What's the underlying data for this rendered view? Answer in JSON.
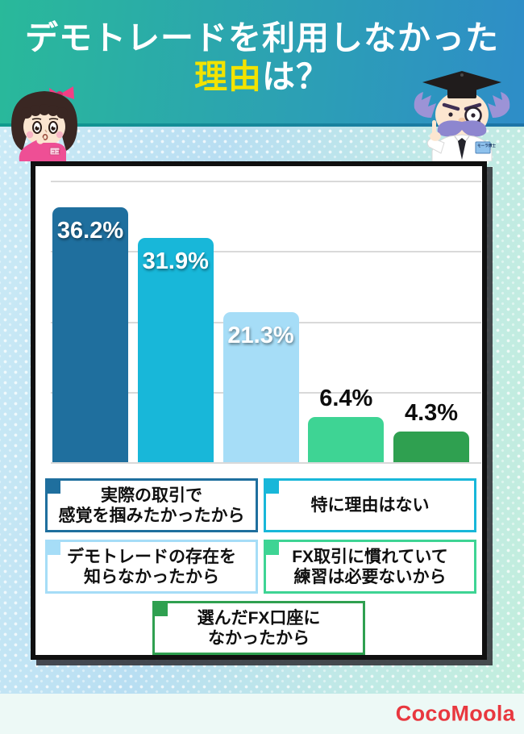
{
  "header": {
    "title_line1": "デモトレードを利用しなかった",
    "title_line2_highlight": "理由",
    "title_line2_rest": "は？",
    "highlight_color": "#f2e300",
    "gradient_left": "#29b99a",
    "gradient_right": "#2e8dc8"
  },
  "chart_data": {
    "type": "bar",
    "title": "デモトレードを利用しなかった理由は？",
    "categories": [
      "実際の取引で感覚を掴みたかったから",
      "特に理由はない",
      "デモトレードの存在を知らなかったから",
      "FX取引に慣れていて練習は必要ないから",
      "選んだFX口座になかったから"
    ],
    "values": [
      36.2,
      31.9,
      21.3,
      6.4,
      4.3
    ],
    "labels": [
      "36.2%",
      "31.9%",
      "21.3%",
      "6.4%",
      "4.3%"
    ],
    "colors": [
      "#1f6f9e",
      "#18b7d9",
      "#a6ddf7",
      "#3ed494",
      "#2fa050"
    ],
    "label_inside": [
      true,
      true,
      true,
      false,
      false
    ],
    "xlabel": "",
    "ylabel": "",
    "ylim": [
      0,
      40
    ],
    "grid_step": 10,
    "grid": true,
    "legend_position": "below"
  },
  "legend": {
    "rows": [
      [
        {
          "color": "#1f6f9e",
          "lines": [
            "実際の取引で",
            "感覚を掴みたかったから"
          ]
        },
        {
          "color": "#18b7d9",
          "lines": [
            "特に理由はない"
          ]
        }
      ],
      [
        {
          "color": "#a6ddf7",
          "lines": [
            "デモトレードの存在を",
            "知らなかったから"
          ]
        },
        {
          "color": "#3ed494",
          "lines": [
            "FX取引に慣れていて",
            "練習は必要ないから"
          ]
        }
      ],
      [
        {
          "color": "#2fa050",
          "lines": [
            "選んだFX口座に",
            "なかったから"
          ]
        }
      ]
    ]
  },
  "characters": {
    "professor_badge": "モーラ博士",
    "girl_tag": "ココ"
  },
  "footer": {
    "logo": "CocoMoola",
    "logo_color": "#e8383f"
  }
}
